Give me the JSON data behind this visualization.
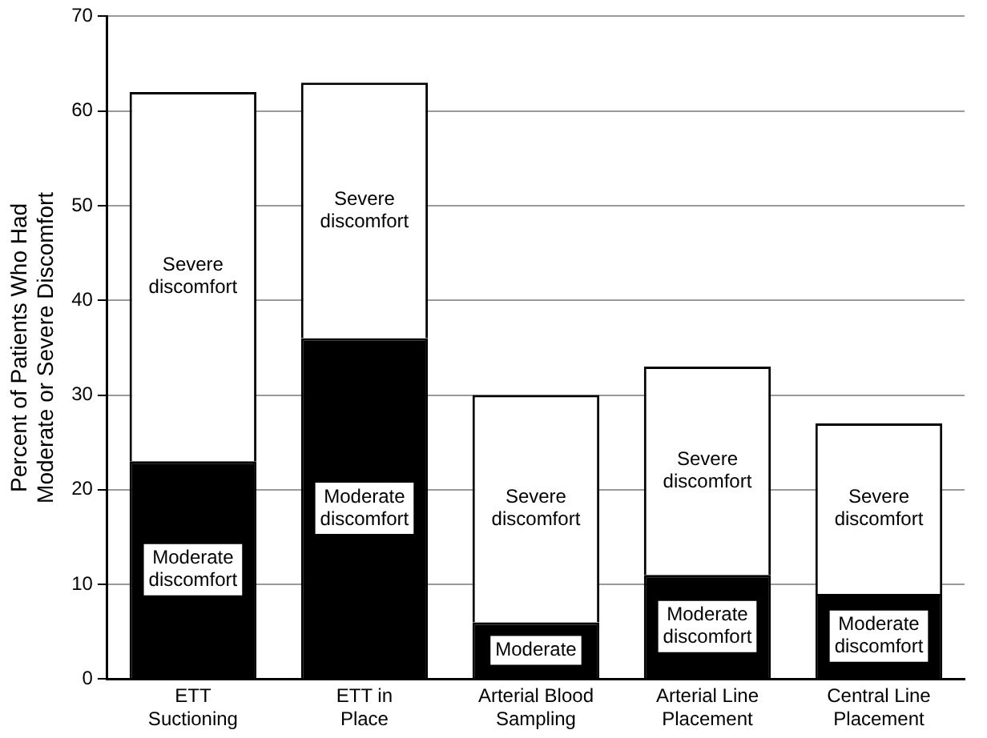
{
  "chart_data": {
    "type": "bar",
    "stacked": true,
    "ylabel": "Percent of Patients Who Had Moderate or Severe Discomfort",
    "categories": [
      "ETT Suctioning",
      "ETT in Place",
      "Arterial Blood Sampling",
      "Arterial Line Placement",
      "Central Line Placement"
    ],
    "series": [
      {
        "color": "#000000",
        "values": [
          23,
          36,
          6,
          11,
          9
        ],
        "value_labels": [
          "Moderate discomfort",
          "Moderate discomfort",
          "Moderate",
          "Moderate discomfort",
          "Moderate discomfort"
        ]
      },
      {
        "color": "#ffffff",
        "values": [
          39,
          27,
          24,
          22,
          18
        ],
        "value_labels": [
          "Severe discomfort",
          "Severe discomfort",
          "Severe discomfort",
          "Severe discomfort",
          "Severe discomfort"
        ]
      }
    ],
    "ylim": [
      0,
      70
    ],
    "yticks": [
      0,
      10,
      20,
      30,
      40,
      50,
      60,
      70
    ],
    "grid": "y",
    "legend": false
  }
}
